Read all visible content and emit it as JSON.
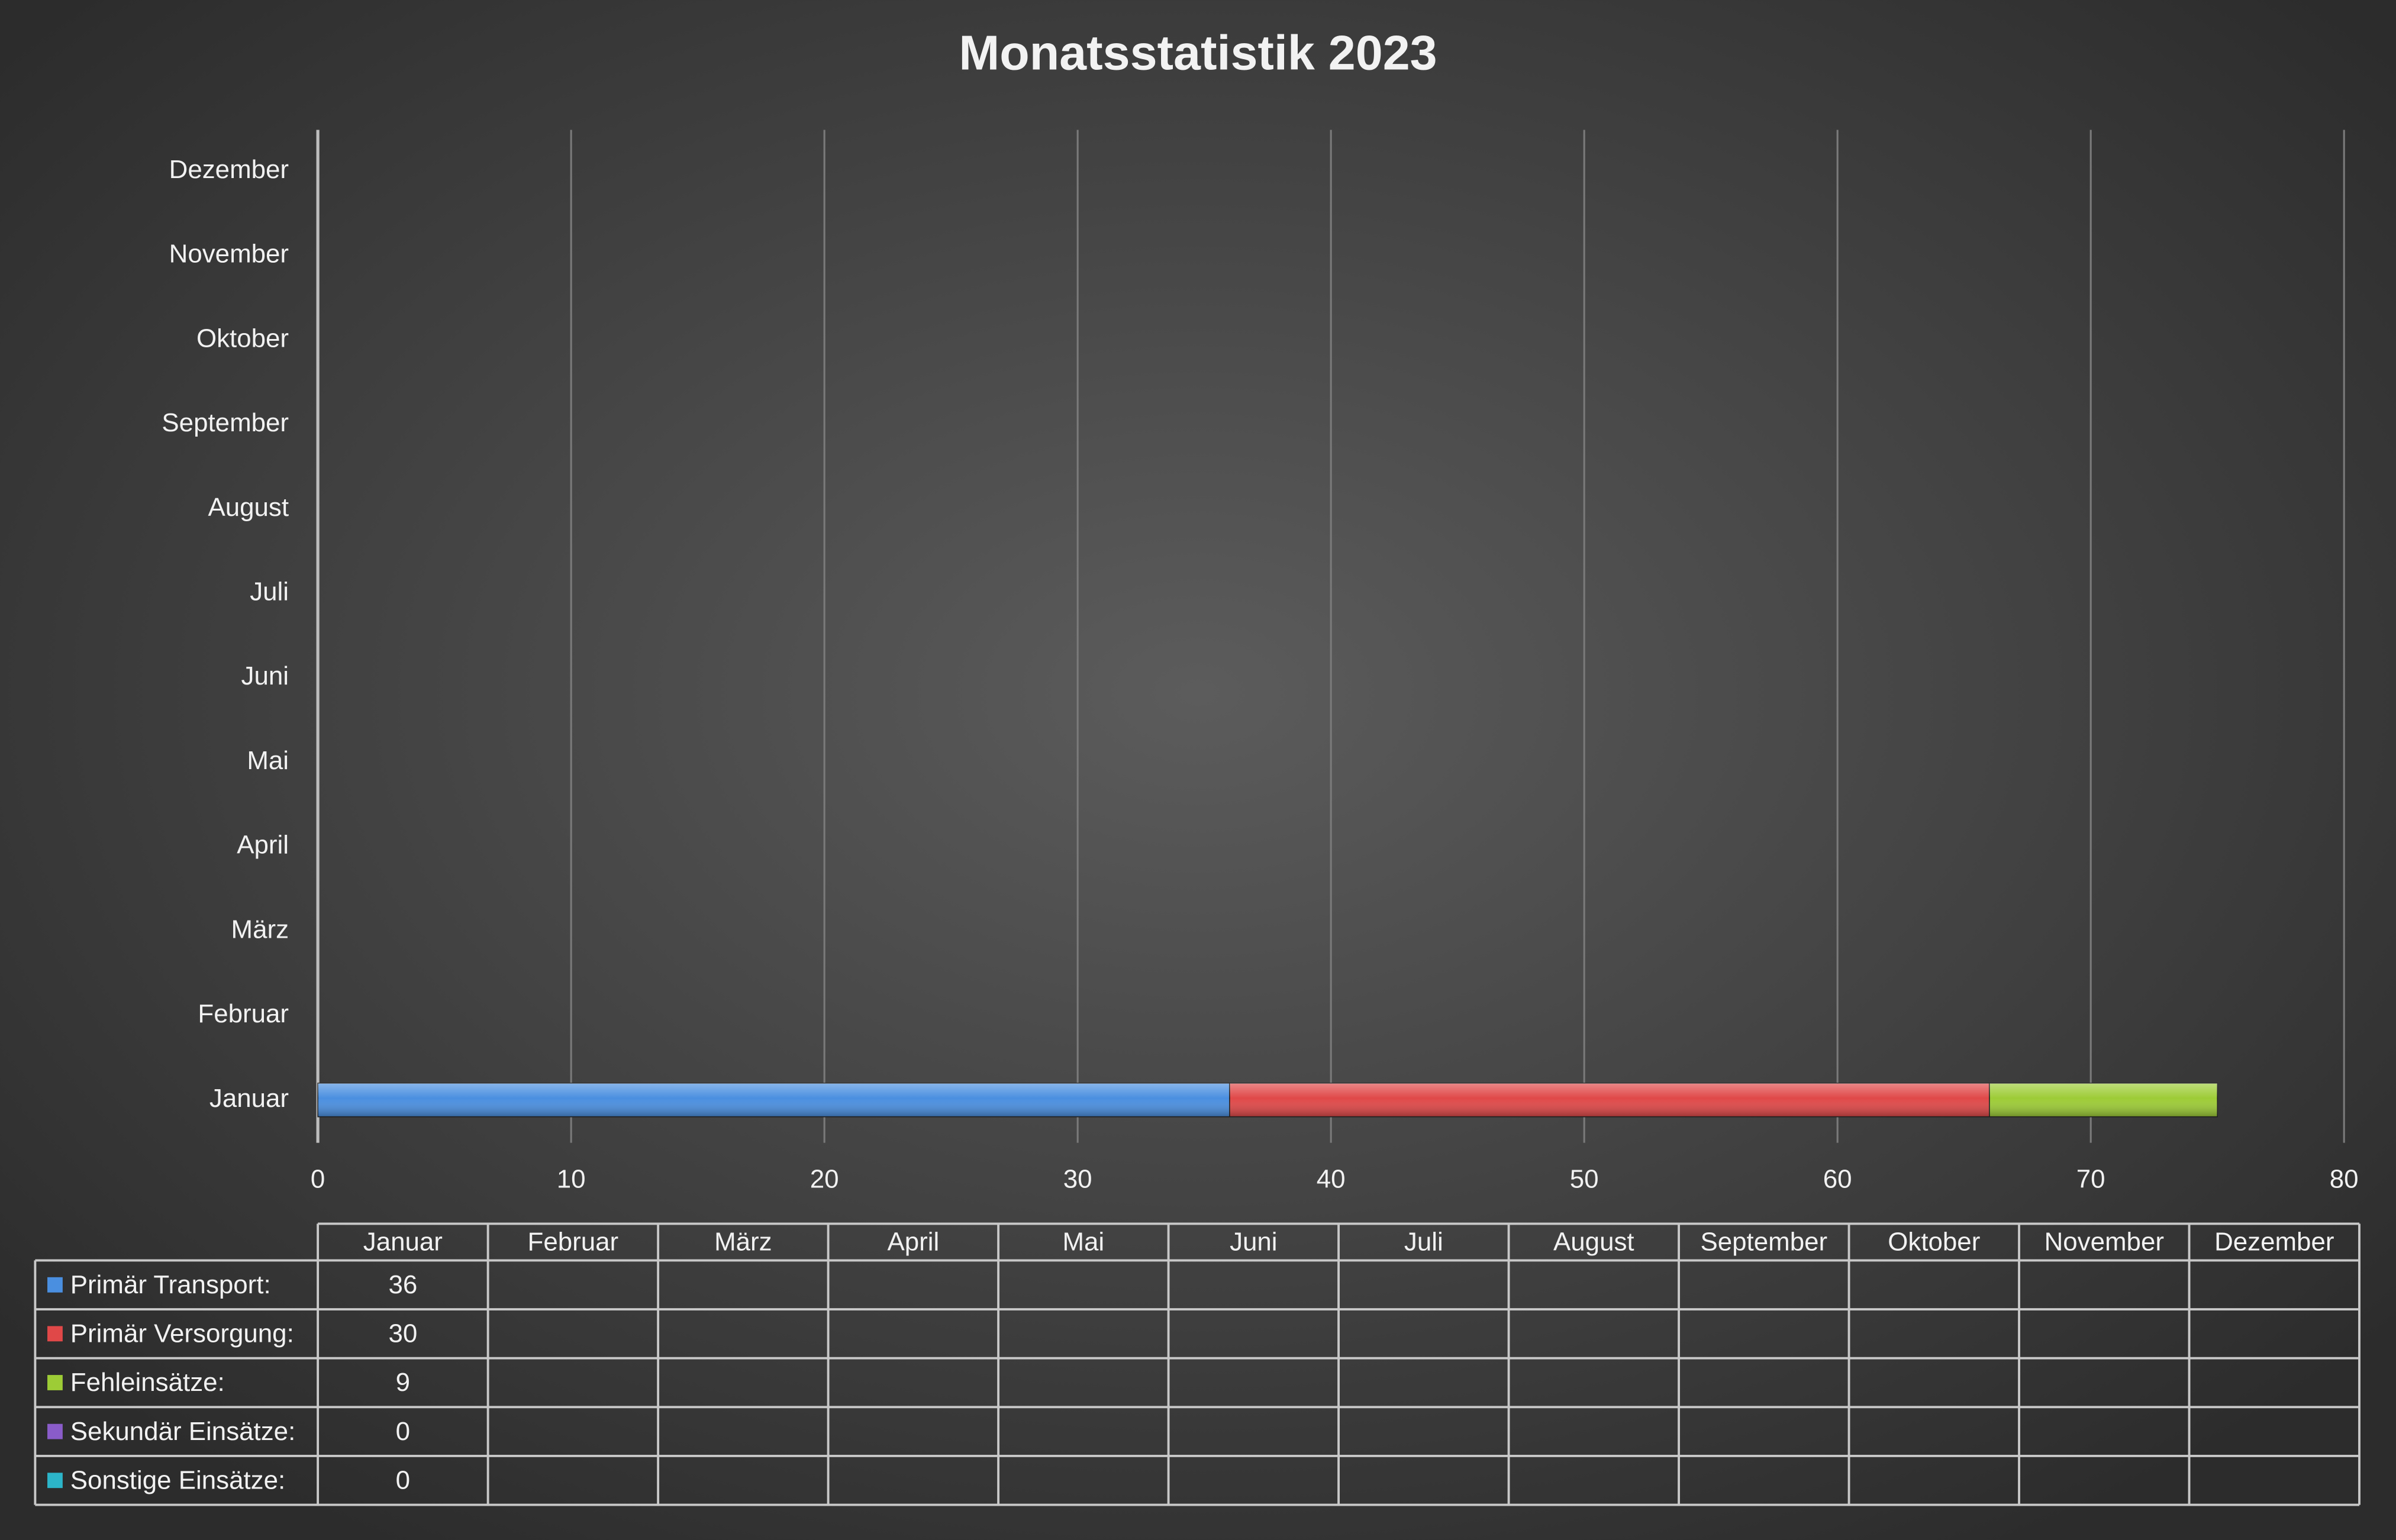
{
  "chart_data": {
    "type": "stacked-bar-horizontal",
    "title": "Monatsstatistik 2023",
    "categories": [
      "Januar",
      "Februar",
      "März",
      "April",
      "Mai",
      "Juni",
      "Juli",
      "August",
      "September",
      "Oktober",
      "November",
      "Dezember"
    ],
    "series": [
      {
        "name": "Primär Transport:",
        "color": "#4a8fe0",
        "values": [
          36,
          null,
          null,
          null,
          null,
          null,
          null,
          null,
          null,
          null,
          null,
          null
        ]
      },
      {
        "name": "Primär Versorgung:",
        "color": "#e04848",
        "values": [
          30,
          null,
          null,
          null,
          null,
          null,
          null,
          null,
          null,
          null,
          null,
          null
        ]
      },
      {
        "name": "Fehleinsätze:",
        "color": "#9dcc36",
        "values": [
          9,
          null,
          null,
          null,
          null,
          null,
          null,
          null,
          null,
          null,
          null,
          null
        ]
      },
      {
        "name": "Sekundär Einsätze:",
        "color": "#8a5cc9",
        "values": [
          0,
          null,
          null,
          null,
          null,
          null,
          null,
          null,
          null,
          null,
          null,
          null
        ]
      },
      {
        "name": "Sonstige Einsätze:",
        "color": "#2cb5c9",
        "values": [
          0,
          null,
          null,
          null,
          null,
          null,
          null,
          null,
          null,
          null,
          null,
          null
        ]
      }
    ],
    "xlim": [
      0,
      80
    ],
    "xticks": [
      0,
      10,
      20,
      30,
      40,
      50,
      60,
      70,
      80
    ],
    "grid": true,
    "data_table": true
  }
}
